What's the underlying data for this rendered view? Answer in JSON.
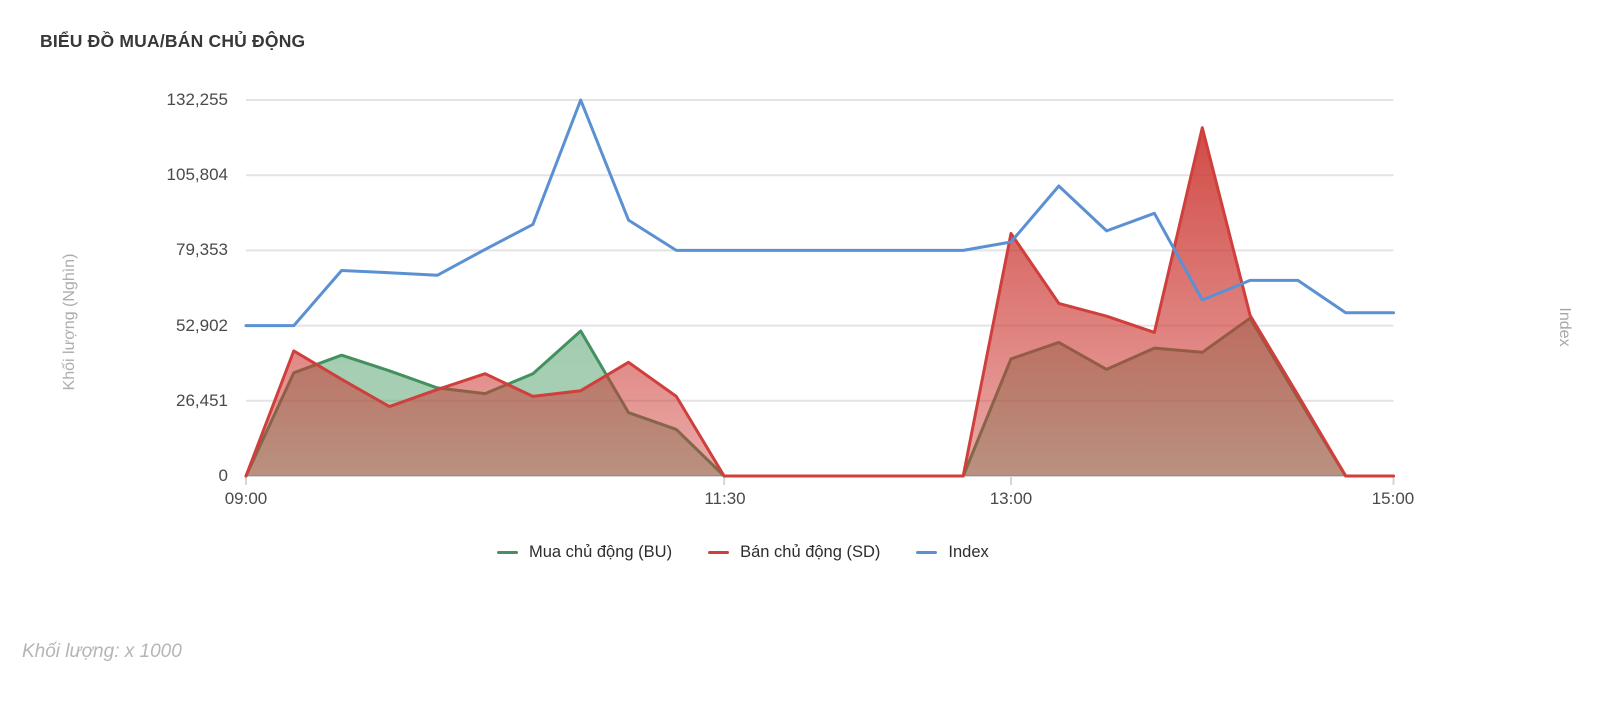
{
  "title": "BIỂU ĐỒ MUA/BÁN CHỦ ĐỘNG",
  "y_axis": {
    "label": "Khối lượng (Nghìn)",
    "ticks": [
      "132,255",
      "105,804",
      "79,353",
      "52,902",
      "26,451",
      "0"
    ]
  },
  "x_axis": {
    "ticks": [
      "09:00",
      "11:30",
      "13:00",
      "15:00"
    ]
  },
  "right_axis_label": "Index",
  "legend": [
    {
      "label": "Mua chủ động (BU)",
      "color": "#43915e"
    },
    {
      "label": "Bán chủ động (SD)",
      "color": "#cf3f3c"
    },
    {
      "label": "Index",
      "color": "#5b91d3"
    }
  ],
  "footer_note": "Khối lượng: x 1000",
  "colors": {
    "bu_stroke": "#43915e",
    "bu_fill_base": "#459960",
    "sd_stroke": "#cf3f3c",
    "sd_fill_base": "#cc3732",
    "index_line": "#5b91d3",
    "gridline": "#e4e4e4",
    "axis_line": "#d6d6d6",
    "tick_text": "#4a4a4a",
    "muted_label": "#adadad"
  },
  "chart_data": {
    "type": "area",
    "title": "BIỂU ĐỒ MUA/BÁN CHỦ ĐỘNG",
    "xlabel": "",
    "ylabel": "Khối lượng (Nghìn)",
    "ylim": [
      0,
      132255
    ],
    "y_grid_values": [
      0,
      26451,
      52902,
      79353,
      105804,
      132255
    ],
    "x_tick_labels": [
      "09:00",
      "11:30",
      "13:00",
      "15:00"
    ],
    "x_tick_minutes": [
      0,
      150,
      240,
      360
    ],
    "grid": "horizontal-only",
    "legend_position": "bottom-center",
    "x": [
      "09:00",
      "09:15",
      "09:30",
      "09:45",
      "10:00",
      "10:15",
      "10:30",
      "10:45",
      "11:00",
      "11:15",
      "11:30",
      "11:45",
      "12:00",
      "12:15",
      "12:30",
      "12:45",
      "13:00",
      "13:15",
      "13:30",
      "13:45",
      "14:00",
      "14:15",
      "14:30",
      "14:45",
      "15:00"
    ],
    "x_minutes": [
      0,
      15,
      30,
      45,
      60,
      75,
      90,
      105,
      120,
      135,
      150,
      165,
      180,
      195,
      210,
      225,
      240,
      255,
      270,
      285,
      300,
      315,
      330,
      345,
      360
    ],
    "series": [
      {
        "name": "Mua chủ động (BU)",
        "id": "bu",
        "type": "area",
        "color": "#43915e",
        "values": [
          0,
          36300,
          42500,
          37000,
          31000,
          29000,
          36000,
          51000,
          22300,
          16400,
          0,
          0,
          0,
          0,
          0,
          0,
          41200,
          47000,
          37500,
          45000,
          43500,
          55500,
          27500,
          0,
          0
        ]
      },
      {
        "name": "Bán chủ động (SD)",
        "id": "sd",
        "type": "area",
        "color": "#cf3f3c",
        "values": [
          0,
          44000,
          34000,
          24400,
          30400,
          36000,
          28000,
          30000,
          40000,
          28000,
          0,
          0,
          0,
          0,
          0,
          0,
          85300,
          60700,
          56200,
          50500,
          122500,
          56500,
          28500,
          0,
          0
        ]
      },
      {
        "name": "Index",
        "id": "index",
        "type": "line",
        "color": "#5b91d3",
        "values": [
          52902,
          52902,
          72300,
          71500,
          70600,
          79700,
          88500,
          132255,
          90000,
          79353,
          79353,
          79353,
          79353,
          79353,
          79353,
          79353,
          82300,
          102000,
          86200,
          92400,
          61900,
          68800,
          68800,
          57400,
          57400
        ]
      }
    ]
  }
}
